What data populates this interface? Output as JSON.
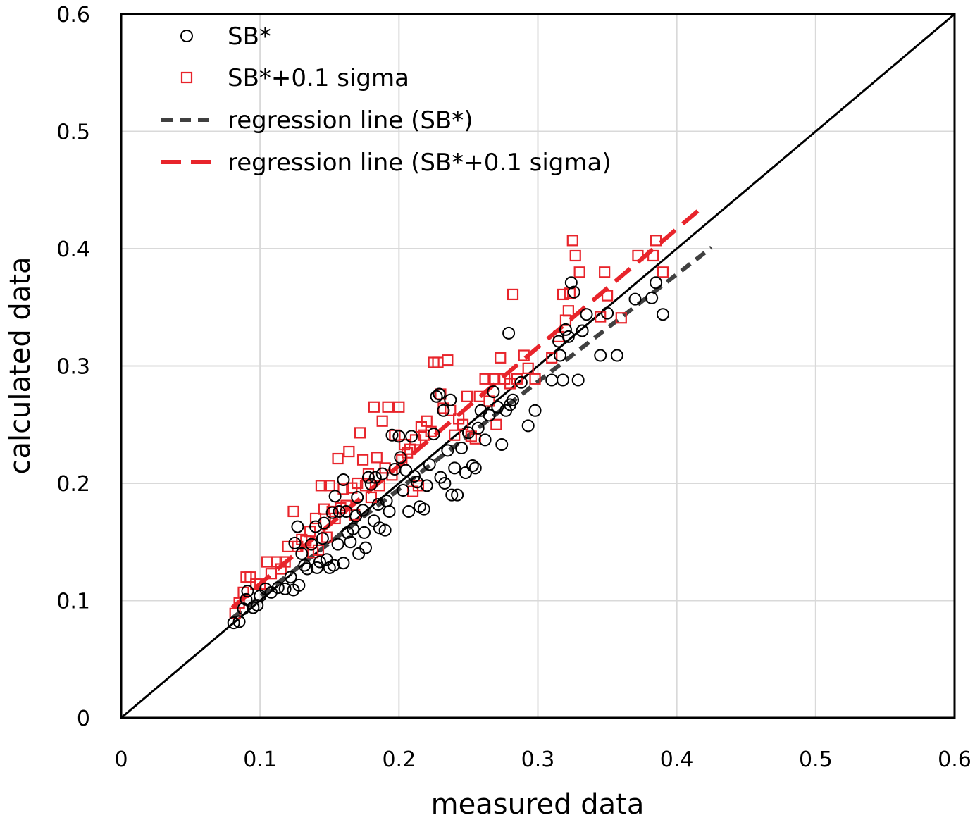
{
  "chart_data": {
    "type": "scatter",
    "xlabel": "measured data",
    "ylabel": "calculated data",
    "xlim": [
      0,
      0.6
    ],
    "ylim": [
      0,
      0.6
    ],
    "xticks": [
      "0",
      "0.1",
      "0.2",
      "0.3",
      "0.4",
      "0.5",
      "0.6"
    ],
    "yticks": [
      "0",
      "0.1",
      "0.2",
      "0.3",
      "0.4",
      "0.5",
      "0.6"
    ],
    "grid": true,
    "legend_position": "top-left",
    "colors": {
      "sb": "#000000",
      "sb_sigma": "#e8242b",
      "reg_sb": "#404040",
      "reg_sb_sigma": "#e8242b",
      "identity": "#000000"
    },
    "identity_line": {
      "name": "y = x",
      "x": [
        0,
        0.6
      ],
      "y": [
        0,
        0.6
      ]
    },
    "series": [
      {
        "name": "SB*",
        "marker": "circle",
        "points": [
          [
            0.081,
            0.081
          ],
          [
            0.085,
            0.082
          ],
          [
            0.088,
            0.093
          ],
          [
            0.09,
            0.101
          ],
          [
            0.091,
            0.108
          ],
          [
            0.095,
            0.094
          ],
          [
            0.098,
            0.096
          ],
          [
            0.1,
            0.104
          ],
          [
            0.104,
            0.11
          ],
          [
            0.108,
            0.107
          ],
          [
            0.113,
            0.111
          ],
          [
            0.118,
            0.11
          ],
          [
            0.122,
            0.12
          ],
          [
            0.124,
            0.109
          ],
          [
            0.125,
            0.149
          ],
          [
            0.127,
            0.163
          ],
          [
            0.128,
            0.113
          ],
          [
            0.13,
            0.14
          ],
          [
            0.132,
            0.13
          ],
          [
            0.134,
            0.127
          ],
          [
            0.137,
            0.148
          ],
          [
            0.14,
            0.163
          ],
          [
            0.141,
            0.128
          ],
          [
            0.143,
            0.133
          ],
          [
            0.145,
            0.153
          ],
          [
            0.146,
            0.166
          ],
          [
            0.148,
            0.135
          ],
          [
            0.15,
            0.128
          ],
          [
            0.152,
            0.175
          ],
          [
            0.153,
            0.13
          ],
          [
            0.154,
            0.189
          ],
          [
            0.156,
            0.148
          ],
          [
            0.157,
            0.176
          ],
          [
            0.16,
            0.132
          ],
          [
            0.16,
            0.203
          ],
          [
            0.162,
            0.176
          ],
          [
            0.163,
            0.158
          ],
          [
            0.165,
            0.15
          ],
          [
            0.167,
            0.161
          ],
          [
            0.169,
            0.172
          ],
          [
            0.17,
            0.188
          ],
          [
            0.171,
            0.14
          ],
          [
            0.174,
            0.177
          ],
          [
            0.175,
            0.158
          ],
          [
            0.176,
            0.145
          ],
          [
            0.178,
            0.205
          ],
          [
            0.18,
            0.199
          ],
          [
            0.182,
            0.168
          ],
          [
            0.183,
            0.205
          ],
          [
            0.185,
            0.182
          ],
          [
            0.186,
            0.162
          ],
          [
            0.188,
            0.208
          ],
          [
            0.19,
            0.16
          ],
          [
            0.191,
            0.185
          ],
          [
            0.193,
            0.176
          ],
          [
            0.195,
            0.241
          ],
          [
            0.197,
            0.212
          ],
          [
            0.2,
            0.24
          ],
          [
            0.201,
            0.222
          ],
          [
            0.203,
            0.194
          ],
          [
            0.205,
            0.211
          ],
          [
            0.207,
            0.176
          ],
          [
            0.209,
            0.24
          ],
          [
            0.211,
            0.206
          ],
          [
            0.213,
            0.201
          ],
          [
            0.215,
            0.18
          ],
          [
            0.218,
            0.178
          ],
          [
            0.22,
            0.198
          ],
          [
            0.222,
            0.216
          ],
          [
            0.225,
            0.242
          ],
          [
            0.227,
            0.274
          ],
          [
            0.229,
            0.276
          ],
          [
            0.23,
            0.205
          ],
          [
            0.232,
            0.262
          ],
          [
            0.233,
            0.2
          ],
          [
            0.235,
            0.228
          ],
          [
            0.237,
            0.271
          ],
          [
            0.238,
            0.19
          ],
          [
            0.24,
            0.213
          ],
          [
            0.242,
            0.19
          ],
          [
            0.245,
            0.23
          ],
          [
            0.248,
            0.209
          ],
          [
            0.25,
            0.243
          ],
          [
            0.253,
            0.215
          ],
          [
            0.255,
            0.213
          ],
          [
            0.257,
            0.247
          ],
          [
            0.259,
            0.262
          ],
          [
            0.262,
            0.237
          ],
          [
            0.265,
            0.258
          ],
          [
            0.268,
            0.278
          ],
          [
            0.271,
            0.265
          ],
          [
            0.274,
            0.233
          ],
          [
            0.277,
            0.262
          ],
          [
            0.279,
            0.328
          ],
          [
            0.28,
            0.267
          ],
          [
            0.282,
            0.271
          ],
          [
            0.288,
            0.286
          ],
          [
            0.293,
            0.249
          ],
          [
            0.298,
            0.262
          ],
          [
            0.31,
            0.288
          ],
          [
            0.315,
            0.321
          ],
          [
            0.316,
            0.309
          ],
          [
            0.318,
            0.288
          ],
          [
            0.32,
            0.331
          ],
          [
            0.322,
            0.325
          ],
          [
            0.324,
            0.371
          ],
          [
            0.326,
            0.363
          ],
          [
            0.329,
            0.288
          ],
          [
            0.332,
            0.33
          ],
          [
            0.335,
            0.344
          ],
          [
            0.345,
            0.309
          ],
          [
            0.35,
            0.345
          ],
          [
            0.357,
            0.309
          ],
          [
            0.37,
            0.357
          ],
          [
            0.382,
            0.358
          ],
          [
            0.385,
            0.371
          ],
          [
            0.39,
            0.344
          ]
        ],
        "regression": {
          "x": [
            0.08,
            0.425
          ],
          "y": [
            0.085,
            0.401
          ]
        }
      },
      {
        "name": "SB*+0.1 sigma",
        "marker": "square",
        "points": [
          [
            0.082,
            0.089
          ],
          [
            0.085,
            0.098
          ],
          [
            0.088,
            0.107
          ],
          [
            0.09,
            0.12
          ],
          [
            0.093,
            0.12
          ],
          [
            0.097,
            0.114
          ],
          [
            0.1,
            0.114
          ],
          [
            0.105,
            0.133
          ],
          [
            0.108,
            0.123
          ],
          [
            0.112,
            0.133
          ],
          [
            0.115,
            0.127
          ],
          [
            0.118,
            0.133
          ],
          [
            0.12,
            0.146
          ],
          [
            0.124,
            0.176
          ],
          [
            0.127,
            0.146
          ],
          [
            0.13,
            0.152
          ],
          [
            0.133,
            0.151
          ],
          [
            0.136,
            0.159
          ],
          [
            0.138,
            0.141
          ],
          [
            0.14,
            0.17
          ],
          [
            0.142,
            0.143
          ],
          [
            0.144,
            0.198
          ],
          [
            0.146,
            0.178
          ],
          [
            0.148,
            0.154
          ],
          [
            0.15,
            0.198
          ],
          [
            0.152,
            0.176
          ],
          [
            0.154,
            0.17
          ],
          [
            0.156,
            0.221
          ],
          [
            0.158,
            0.179
          ],
          [
            0.16,
            0.195
          ],
          [
            0.162,
            0.181
          ],
          [
            0.164,
            0.227
          ],
          [
            0.166,
            0.196
          ],
          [
            0.168,
            0.173
          ],
          [
            0.17,
            0.2
          ],
          [
            0.172,
            0.243
          ],
          [
            0.174,
            0.22
          ],
          [
            0.176,
            0.198
          ],
          [
            0.178,
            0.208
          ],
          [
            0.18,
            0.188
          ],
          [
            0.182,
            0.265
          ],
          [
            0.184,
            0.222
          ],
          [
            0.186,
            0.198
          ],
          [
            0.188,
            0.253
          ],
          [
            0.19,
            0.213
          ],
          [
            0.192,
            0.265
          ],
          [
            0.195,
            0.207
          ],
          [
            0.197,
            0.241
          ],
          [
            0.2,
            0.265
          ],
          [
            0.202,
            0.22
          ],
          [
            0.204,
            0.233
          ],
          [
            0.206,
            0.226
          ],
          [
            0.208,
            0.229
          ],
          [
            0.21,
            0.193
          ],
          [
            0.212,
            0.237
          ],
          [
            0.214,
            0.198
          ],
          [
            0.216,
            0.248
          ],
          [
            0.218,
            0.241
          ],
          [
            0.22,
            0.253
          ],
          [
            0.223,
            0.244
          ],
          [
            0.225,
            0.303
          ],
          [
            0.228,
            0.303
          ],
          [
            0.23,
            0.276
          ],
          [
            0.232,
            0.264
          ],
          [
            0.235,
            0.305
          ],
          [
            0.237,
            0.262
          ],
          [
            0.24,
            0.241
          ],
          [
            0.243,
            0.255
          ],
          [
            0.246,
            0.25
          ],
          [
            0.249,
            0.274
          ],
          [
            0.252,
            0.24
          ],
          [
            0.255,
            0.238
          ],
          [
            0.258,
            0.274
          ],
          [
            0.262,
            0.289
          ],
          [
            0.265,
            0.27
          ],
          [
            0.268,
            0.289
          ],
          [
            0.27,
            0.25
          ],
          [
            0.273,
            0.307
          ],
          [
            0.276,
            0.289
          ],
          [
            0.28,
            0.285
          ],
          [
            0.282,
            0.361
          ],
          [
            0.285,
            0.289
          ],
          [
            0.29,
            0.309
          ],
          [
            0.293,
            0.298
          ],
          [
            0.298,
            0.289
          ],
          [
            0.31,
            0.307
          ],
          [
            0.315,
            0.325
          ],
          [
            0.318,
            0.361
          ],
          [
            0.32,
            0.339
          ],
          [
            0.322,
            0.347
          ],
          [
            0.323,
            0.362
          ],
          [
            0.325,
            0.407
          ],
          [
            0.327,
            0.394
          ],
          [
            0.33,
            0.38
          ],
          [
            0.345,
            0.342
          ],
          [
            0.348,
            0.38
          ],
          [
            0.35,
            0.36
          ],
          [
            0.36,
            0.341
          ],
          [
            0.372,
            0.394
          ],
          [
            0.383,
            0.394
          ],
          [
            0.385,
            0.407
          ],
          [
            0.39,
            0.38
          ]
        ],
        "regression": {
          "x": [
            0.08,
            0.42
          ],
          "y": [
            0.094,
            0.437
          ]
        }
      }
    ],
    "legend": [
      {
        "label": "SB*",
        "kind": "circle"
      },
      {
        "label": "SB*+0.1 sigma",
        "kind": "square"
      },
      {
        "label": "regression line (SB*)",
        "kind": "dash-dark"
      },
      {
        "label": "regression line (SB*+0.1 sigma)",
        "kind": "dash-red"
      }
    ]
  }
}
